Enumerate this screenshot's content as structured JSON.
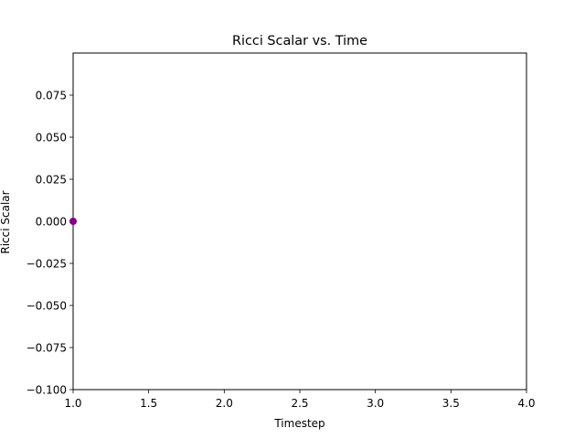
{
  "chart_data": {
    "type": "scatter",
    "title": "Ricci Scalar vs. Time",
    "xlabel": "Timestep",
    "ylabel": "Ricci Scalar",
    "xlim": [
      1.0,
      4.0
    ],
    "ylim": [
      -0.1,
      0.1
    ],
    "x_ticks": [
      1.0,
      1.5,
      2.0,
      2.5,
      3.0,
      3.5,
      4.0
    ],
    "x_tick_labels": [
      "1.0",
      "1.5",
      "2.0",
      "2.5",
      "3.0",
      "3.5",
      "4.0"
    ],
    "y_ticks": [
      0.075,
      0.05,
      0.025,
      0.0,
      -0.025,
      -0.05,
      -0.075,
      -0.1
    ],
    "y_tick_labels": [
      "0.075",
      "0.050",
      "0.025",
      "0.000",
      "−0.025",
      "−0.050",
      "−0.075",
      "−0.100"
    ],
    "grid": false,
    "series": [
      {
        "color": "#800080",
        "points": [
          {
            "x": 1.0,
            "y": 0.0
          }
        ]
      }
    ]
  }
}
